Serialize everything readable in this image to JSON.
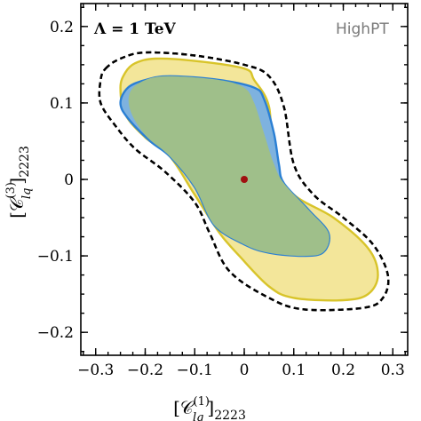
{
  "chart_data": {
    "type": "contour",
    "annotation": "Λ = 1 TeV",
    "brand": "HighPT",
    "xlabel": {
      "base": "[𝒞",
      "sup": "(1)",
      "sub": "lq",
      "tail": "]",
      "index": "2223"
    },
    "ylabel": {
      "base": "[𝒞",
      "sup": "(3)",
      "sub": "lq",
      "tail": "]",
      "index": "2223"
    },
    "xlim": [
      -0.33,
      0.33
    ],
    "ylim": [
      -0.23,
      0.23
    ],
    "xticks": [
      -0.3,
      -0.2,
      -0.1,
      0,
      0.1,
      0.2,
      0.3
    ],
    "xtick_labels": [
      "−0.3",
      "−0.2",
      "−0.1",
      "0",
      "0.1",
      "0.2",
      "0.3"
    ],
    "yticks": [
      -0.2,
      -0.1,
      0,
      0.1,
      0.2
    ],
    "ytick_labels": [
      "−0.2",
      "−0.1",
      "0",
      "0.1",
      "0.2"
    ],
    "best_fit": {
      "x": 0.0,
      "y": 0.0,
      "color": "#a01010"
    },
    "regions": [
      {
        "style": "dashed",
        "stroke": "#000000",
        "fill": "none",
        "points": [
          [
            -0.28,
            0.145
          ],
          [
            -0.25,
            0.158
          ],
          [
            -0.2,
            0.166
          ],
          [
            -0.1,
            0.162
          ],
          [
            0.0,
            0.15
          ],
          [
            0.05,
            0.135
          ],
          [
            0.08,
            0.095
          ],
          [
            0.1,
            0.02
          ],
          [
            0.14,
            -0.02
          ],
          [
            0.2,
            -0.05
          ],
          [
            0.26,
            -0.085
          ],
          [
            0.29,
            -0.125
          ],
          [
            0.28,
            -0.155
          ],
          [
            0.24,
            -0.168
          ],
          [
            0.12,
            -0.17
          ],
          [
            0.05,
            -0.155
          ],
          [
            -0.03,
            -0.12
          ],
          [
            -0.07,
            -0.07
          ],
          [
            -0.1,
            -0.03
          ],
          [
            -0.16,
            0.01
          ],
          [
            -0.22,
            0.04
          ],
          [
            -0.26,
            0.07
          ],
          [
            -0.29,
            0.1
          ],
          [
            -0.29,
            0.13
          ]
        ]
      },
      {
        "style": "solid",
        "stroke": "#d8c42a",
        "fill": "#f3e69a",
        "points": [
          [
            -0.22,
            0.152
          ],
          [
            -0.18,
            0.158
          ],
          [
            -0.1,
            0.155
          ],
          [
            0.0,
            0.145
          ],
          [
            0.02,
            0.13
          ],
          [
            0.05,
            0.095
          ],
          [
            0.06,
            0.02
          ],
          [
            0.1,
            -0.02
          ],
          [
            0.18,
            -0.05
          ],
          [
            0.25,
            -0.09
          ],
          [
            0.27,
            -0.125
          ],
          [
            0.25,
            -0.15
          ],
          [
            0.2,
            -0.158
          ],
          [
            0.1,
            -0.155
          ],
          [
            0.05,
            -0.14
          ],
          [
            -0.01,
            -0.1
          ],
          [
            -0.05,
            -0.07
          ],
          [
            -0.1,
            -0.02
          ],
          [
            -0.15,
            0.03
          ],
          [
            -0.2,
            0.055
          ],
          [
            -0.24,
            0.085
          ],
          [
            -0.25,
            0.12
          ],
          [
            -0.24,
            0.14
          ]
        ]
      },
      {
        "style": "solid",
        "stroke": "#2a7fd4",
        "fill": "#7eb2df",
        "points": [
          [
            -0.2,
            0.13
          ],
          [
            -0.15,
            0.135
          ],
          [
            -0.05,
            0.13
          ],
          [
            0.02,
            0.12
          ],
          [
            0.04,
            0.105
          ],
          [
            0.06,
            0.06
          ],
          [
            0.07,
            0.02
          ],
          [
            0.08,
            -0.005
          ],
          [
            0.13,
            -0.04
          ],
          [
            0.17,
            -0.07
          ],
          [
            0.16,
            -0.095
          ],
          [
            0.12,
            -0.1
          ],
          [
            0.05,
            -0.096
          ],
          [
            0.0,
            -0.085
          ],
          [
            -0.06,
            -0.06
          ],
          [
            -0.1,
            -0.01
          ],
          [
            -0.15,
            0.03
          ],
          [
            -0.19,
            0.05
          ],
          [
            -0.235,
            0.08
          ],
          [
            -0.25,
            0.1
          ],
          [
            -0.235,
            0.12
          ]
        ]
      },
      {
        "style": "overlap",
        "stroke": "none",
        "fill": "#9fbf8a",
        "points": [
          [
            -0.2,
            0.13
          ],
          [
            -0.15,
            0.135
          ],
          [
            -0.05,
            0.13
          ],
          [
            0.0,
            0.12
          ],
          [
            0.02,
            0.1
          ],
          [
            0.04,
            0.06
          ],
          [
            0.06,
            0.02
          ],
          [
            0.08,
            -0.005
          ],
          [
            0.13,
            -0.04
          ],
          [
            0.17,
            -0.07
          ],
          [
            0.16,
            -0.095
          ],
          [
            0.12,
            -0.1
          ],
          [
            0.05,
            -0.096
          ],
          [
            0.0,
            -0.085
          ],
          [
            -0.06,
            -0.06
          ],
          [
            -0.1,
            -0.01
          ],
          [
            -0.15,
            0.03
          ],
          [
            -0.2,
            0.058
          ],
          [
            -0.23,
            0.09
          ],
          [
            -0.23,
            0.115
          ]
        ]
      }
    ]
  }
}
